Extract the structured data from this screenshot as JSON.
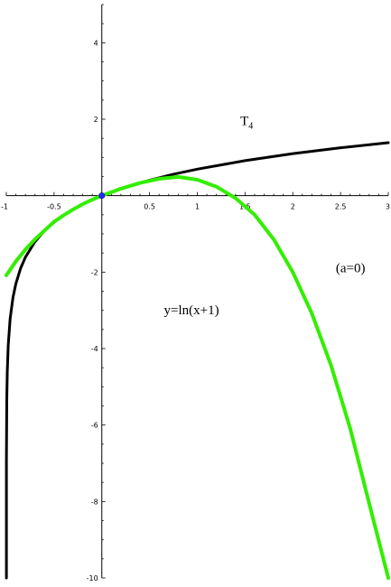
{
  "chart_data": {
    "type": "line",
    "title": "",
    "xlabel": "",
    "ylabel": "",
    "xlim": [
      -1,
      3
    ],
    "ylim": [
      -10,
      5
    ],
    "grid": false,
    "x_ticks": [
      -1,
      -0.5,
      0.5,
      1,
      1.5,
      2,
      2.5,
      3
    ],
    "x_tick_labels": [
      "-1",
      "-0.5",
      "0.5",
      "1",
      "1.5",
      "2",
      "2.5",
      "3"
    ],
    "y_ticks": [
      -10,
      -8,
      -6,
      -4,
      -2,
      2,
      4
    ],
    "y_tick_labels": [
      "-10",
      "-8",
      "-6",
      "-4",
      "-2",
      "2",
      "4"
    ],
    "series": [
      {
        "color": "#000000",
        "x": [
          -0.999,
          -0.995,
          -0.99,
          -0.98,
          -0.96,
          -0.93,
          -0.9,
          -0.85,
          -0.8,
          -0.7,
          -0.6,
          -0.5,
          -0.4,
          -0.3,
          -0.2,
          -0.1,
          0,
          0.25,
          0.5,
          0.75,
          1,
          1.5,
          2,
          2.5,
          3
        ],
        "y": [
          -6.908,
          -5.298,
          -4.605,
          -3.912,
          -3.219,
          -2.659,
          -2.303,
          -1.897,
          -1.609,
          -1.204,
          -0.916,
          -0.693,
          -0.511,
          -0.357,
          -0.223,
          -0.105,
          0,
          0.223,
          0.405,
          0.56,
          0.693,
          0.916,
          1.099,
          1.253,
          1.386
        ]
      },
      {
        "color": "#33ee00",
        "x": [
          -1,
          -0.9,
          -0.8,
          -0.7,
          -0.6,
          -0.5,
          -0.4,
          -0.3,
          -0.2,
          -0.1,
          0,
          0.2,
          0.4,
          0.6,
          0.8,
          1,
          1.2,
          1.4,
          1.6,
          1.8,
          2,
          2.2,
          2.4,
          2.6,
          2.8,
          3
        ],
        "y": [
          -2.083,
          -1.719,
          -1.408,
          -1.142,
          -0.912,
          -0.682,
          -0.514,
          -0.359,
          -0.223,
          -0.105,
          0,
          0.183,
          0.334,
          0.44,
          0.491,
          0.417,
          0.235,
          -0.064,
          -0.498,
          -1.143,
          -2.0,
          -3.085,
          -4.435,
          -6.08,
          -8.05,
          -10.0
        ]
      }
    ],
    "points": [
      {
        "x": 0,
        "y": 0,
        "color": "#2a2aff"
      }
    ],
    "annotations": [
      {
        "text": "T",
        "sub": "4",
        "x": 1.45,
        "y": 1.85
      },
      {
        "text": "(a=0)",
        "x": 2.45,
        "y": -2.0
      },
      {
        "text": "y=ln(x+1)",
        "x": 0.65,
        "y": -3.1
      }
    ]
  }
}
